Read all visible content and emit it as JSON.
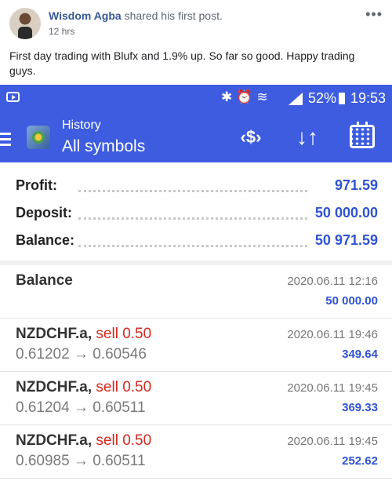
{
  "post": {
    "author": "Wisdom Agba",
    "action": "shared his first post.",
    "time": "12 hrs",
    "caption": "First day trading with Blufx and 1.9% up. So far so good. Happy trading guys."
  },
  "status_bar": {
    "icons": [
      "sim-icon",
      "bluetooth-icon",
      "alarm-icon",
      "wifi-icon",
      "signal-icon"
    ],
    "battery": "52%",
    "clock": "19:53"
  },
  "app_bar": {
    "title": "History",
    "subtitle": "All symbols",
    "icons": [
      "currency-exchange-icon",
      "sort-icon",
      "calendar-icon"
    ]
  },
  "summary": [
    {
      "label": "Profit:",
      "value": "971.59"
    },
    {
      "label": "Deposit:",
      "value": "50 000.00"
    },
    {
      "label": "Balance:",
      "value": "50 971.59"
    }
  ],
  "balance_entry": {
    "title": "Balance",
    "date": "2020.06.11 12:16",
    "amount": "50 000.00"
  },
  "deals": [
    {
      "symbol": "NZDCHF.a,",
      "side": "sell 0.50",
      "prices": "0.61202 → 0.60546",
      "date": "2020.06.11 19:46",
      "profit": "349.64"
    },
    {
      "symbol": "NZDCHF.a,",
      "side": "sell 0.50",
      "prices": "0.61204 → 0.60511",
      "date": "2020.06.11 19:45",
      "profit": "369.33"
    },
    {
      "symbol": "NZDCHF.a,",
      "side": "sell 0.50",
      "prices": "0.60985 → 0.60511",
      "date": "2020.06.11 19:45",
      "profit": "252.62"
    }
  ],
  "colors": {
    "accent": "#3d5ce0",
    "profit": "#2f53d6",
    "sell": "#d6281e",
    "link": "#385898"
  }
}
